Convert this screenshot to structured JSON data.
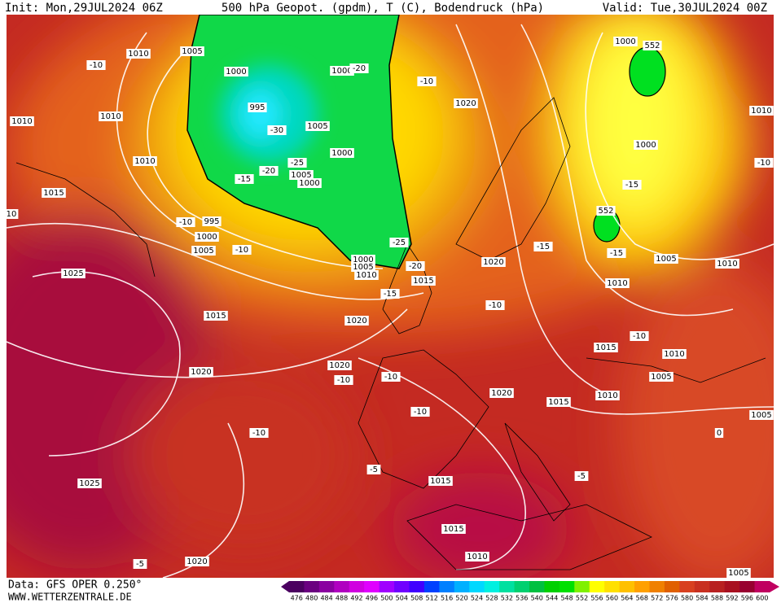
{
  "header": {
    "init": "Init: Mon,29JUL2024 06Z",
    "title": "500 hPa Geopot. (gpdm), T (C), Bodendruck (hPa)",
    "valid": "Valid: Tue,30JUL2024 00Z"
  },
  "footer": {
    "data": "Data: GFS OPER 0.250°",
    "site": "WWW.WETTERZENTRALE.DE"
  },
  "colorbar": {
    "values": [
      476,
      480,
      484,
      488,
      492,
      496,
      500,
      504,
      508,
      512,
      516,
      520,
      524,
      528,
      532,
      536,
      540,
      544,
      548,
      552,
      556,
      560,
      564,
      568,
      572,
      576,
      580,
      584,
      588,
      592,
      596,
      600
    ],
    "colors": [
      "#4b0060",
      "#6a0080",
      "#8a00a0",
      "#b000c0",
      "#d000e0",
      "#e000ff",
      "#a000ff",
      "#7000ff",
      "#4000ff",
      "#0040ff",
      "#0080ff",
      "#00b0ff",
      "#00d8ff",
      "#00f0e0",
      "#00e0a0",
      "#00d070",
      "#00c040",
      "#00d000",
      "#00e000",
      "#80f000",
      "#ffff00",
      "#ffe000",
      "#ffc000",
      "#ffa000",
      "#f08000",
      "#e06000",
      "#d84020",
      "#c83020",
      "#b82020",
      "#a81020",
      "#980030",
      "#c00060"
    ]
  },
  "map": {
    "labels": [
      "1010",
      "1005",
      "-10",
      "1010",
      "1010",
      "1000",
      "1000",
      "-20",
      "995",
      "-30",
      "1005",
      "1000",
      "-25",
      "1005",
      "1000",
      "-20",
      "-15",
      "1010",
      "1015",
      "10",
      "-10",
      "995",
      "1000",
      "1005",
      "-10",
      "-25",
      "1000",
      "1005",
      "1010",
      "-20",
      "1015",
      "-15",
      "1025",
      "1015",
      "1020",
      "1020",
      "-10",
      "1000",
      "552",
      "1000",
      "-15",
      "552",
      "-15",
      "-15",
      "1005",
      "1010",
      "1010",
      "-10",
      "1010",
      "1020",
      "-10",
      "-10",
      "1015",
      "1010",
      "1020",
      "-10",
      "-10",
      "1020",
      "1005",
      "1020",
      "1015",
      "1010",
      "-10",
      "1005",
      "0",
      "-10",
      "-5",
      "-5",
      "1015",
      "1025",
      "1015",
      "1010",
      "-5",
      "1020",
      "1005"
    ]
  }
}
